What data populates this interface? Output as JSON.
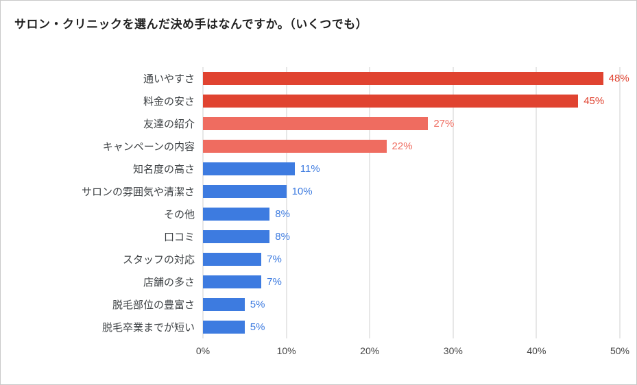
{
  "title": "サロン・クリニックを選んだ決め手はなんですか。（いくつでも）",
  "chart_data": {
    "type": "bar",
    "orientation": "horizontal",
    "title": "サロン・クリニックを選んだ決め手はなんですか。（いくつでも）",
    "categories": [
      "通いやすさ",
      "料金の安さ",
      "友達の紹介",
      "キャンペーンの内容",
      "知名度の高さ",
      "サロンの雰囲気や清潔さ",
      "その他",
      "口コミ",
      "スタッフの対応",
      "店舗の多さ",
      "脱毛部位の豊富さ",
      "脱毛卒業までが短い"
    ],
    "values": [
      48,
      45,
      27,
      22,
      11,
      10,
      8,
      8,
      7,
      7,
      5,
      5
    ],
    "value_labels": [
      "48%",
      "45%",
      "27%",
      "22%",
      "11%",
      "10%",
      "8%",
      "8%",
      "7%",
      "7%",
      "5%",
      "5%"
    ],
    "colors": [
      "#e04330",
      "#e04330",
      "#ef6c60",
      "#ef6c60",
      "#3d7be0",
      "#3d7be0",
      "#3d7be0",
      "#3d7be0",
      "#3d7be0",
      "#3d7be0",
      "#3d7be0",
      "#3d7be0"
    ],
    "x_ticks": [
      "0%",
      "10%",
      "20%",
      "30%",
      "40%",
      "50%"
    ],
    "xlim": [
      0,
      50
    ],
    "grid": true,
    "legend": "none",
    "xlabel": "",
    "ylabel": ""
  }
}
